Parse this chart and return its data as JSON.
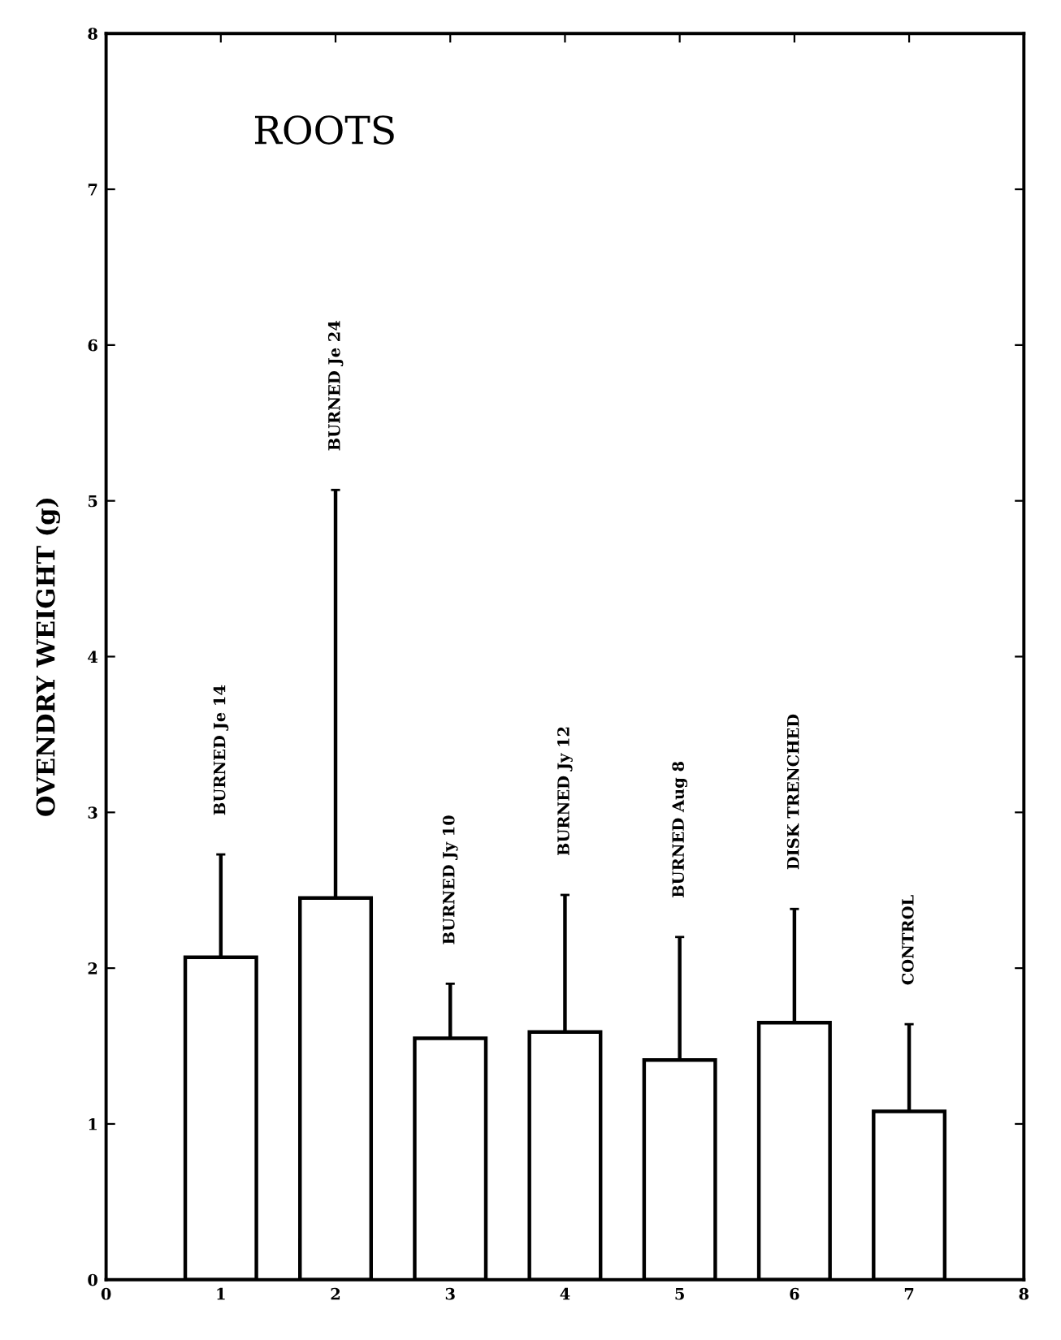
{
  "chart_data": {
    "type": "bar",
    "title": "ROOTS",
    "ylabel": "OVENDRY WEIGHT (g)",
    "x": [
      1,
      2,
      3,
      4,
      5,
      6,
      7
    ],
    "series": [
      {
        "color": "#ffffff",
        "values": [
          2.07,
          2.45,
          1.55,
          1.59,
          1.41,
          1.65,
          1.08
        ],
        "errors": [
          [
            2.07,
            2.73
          ],
          [
            2.45,
            5.07
          ],
          [
            1.55,
            1.9
          ],
          [
            1.59,
            2.47
          ],
          [
            1.41,
            2.2
          ],
          [
            1.65,
            2.38
          ],
          [
            1.08,
            1.64
          ]
        ]
      }
    ],
    "annotations": [
      "BURNED Je 14",
      "BURNED Je 24",
      "BURNED Jy 10",
      "BURNED Jy 12",
      "BURNED Aug 8",
      "DISK TRENCHED",
      "CONTROL"
    ],
    "xlim": [
      0,
      8
    ],
    "xticks": [
      0,
      1,
      2,
      3,
      4,
      5,
      6,
      7,
      8
    ],
    "ylim": [
      0,
      8
    ],
    "yticks": [
      0,
      1,
      2,
      3,
      4,
      5,
      6,
      7,
      8
    ],
    "grid": false,
    "legend": false
  }
}
